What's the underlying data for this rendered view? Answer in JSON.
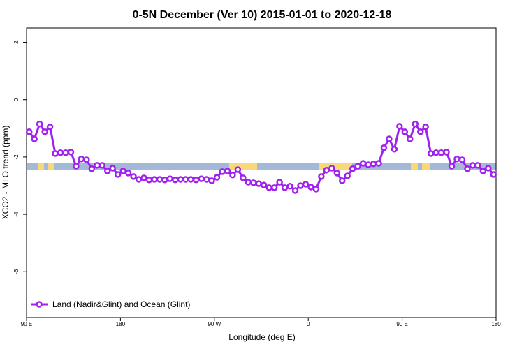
{
  "chart_data": {
    "type": "line",
    "title": "0-5N December (Ver 10)   2015-01-01 to 2020-12-18",
    "x_label": "Longitude (deg E)",
    "y_label": "XCO2 - MLO trend (ppm)",
    "x": [
      92.5,
      97.5,
      102.5,
      107.5,
      112.5,
      117.5,
      122.5,
      127.5,
      132.5,
      137.5,
      142.5,
      147.5,
      152.5,
      157.5,
      162.5,
      167.5,
      172.5,
      177.5,
      182.5,
      187.5,
      192.5,
      197.5,
      202.5,
      207.5,
      212.5,
      217.5,
      222.5,
      227.5,
      232.5,
      237.5,
      242.5,
      247.5,
      252.5,
      257.5,
      262.5,
      267.5,
      272.5,
      277.5,
      282.5,
      287.5,
      292.5,
      297.5,
      302.5,
      307.5,
      312.5,
      317.5,
      322.5,
      327.5,
      332.5,
      337.5,
      342.5,
      347.5,
      352.5,
      357.5,
      362.5,
      367.5,
      372.5,
      377.5,
      382.5,
      387.5,
      392.5,
      397.5,
      402.5,
      407.5,
      412.5,
      417.5,
      422.5,
      427.5,
      432.5,
      437.5,
      442.5,
      447.5,
      452.5,
      457.5,
      462.5,
      467.5,
      472.5,
      477.5,
      482.5,
      487.5,
      492.5,
      497.5,
      502.5,
      507.5,
      512.5,
      517.5,
      522.5,
      527.5,
      532.5,
      537.5
    ],
    "series": [
      {
        "name": "Land (Nadir&Glint) and Ocean (Glint)",
        "color": "#a020f0",
        "values": [
          -1.12,
          -1.37,
          -0.85,
          -1.12,
          -0.95,
          -1.88,
          -1.85,
          -1.85,
          -1.83,
          -2.32,
          -2.07,
          -2.1,
          -2.41,
          -2.29,
          -2.29,
          -2.49,
          -2.39,
          -2.61,
          -2.49,
          -2.56,
          -2.68,
          -2.78,
          -2.73,
          -2.8,
          -2.78,
          -2.78,
          -2.8,
          -2.76,
          -2.8,
          -2.78,
          -2.78,
          -2.78,
          -2.8,
          -2.76,
          -2.78,
          -2.83,
          -2.71,
          -2.51,
          -2.49,
          -2.63,
          -2.44,
          -2.73,
          -2.88,
          -2.9,
          -2.93,
          -2.98,
          -3.07,
          -3.07,
          -2.88,
          -3.07,
          -3.02,
          -3.17,
          -3.0,
          -2.95,
          -3.05,
          -3.12,
          -2.68,
          -2.46,
          -2.39,
          -2.56,
          -2.83,
          -2.66,
          -2.41,
          -2.32,
          -2.22,
          -2.27,
          -2.24,
          -2.22,
          -1.68,
          -1.37,
          -1.73,
          -0.93,
          -1.12,
          -1.37,
          -0.85,
          -1.12,
          -0.95,
          -1.88,
          -1.85,
          -1.85,
          -1.83,
          -2.32,
          -2.07,
          -2.1,
          -2.41,
          -2.29,
          -2.29,
          -2.49,
          -2.39,
          -2.61
        ]
      }
    ],
    "xlim": [
      90,
      540
    ],
    "xticks": [
      {
        "value": 90,
        "label": "90 E"
      },
      180,
      {
        "value": 270,
        "label": "90 W"
      },
      {
        "value": 360,
        "label": "0"
      },
      {
        "value": 450,
        "label": "90 E"
      },
      {
        "value": 540,
        "label": "180"
      }
    ],
    "ylim": [
      -7.6,
      2.5
    ],
    "yticks": [
      -6,
      -4,
      -2,
      0,
      2
    ],
    "legend": "bottom-left"
  }
}
